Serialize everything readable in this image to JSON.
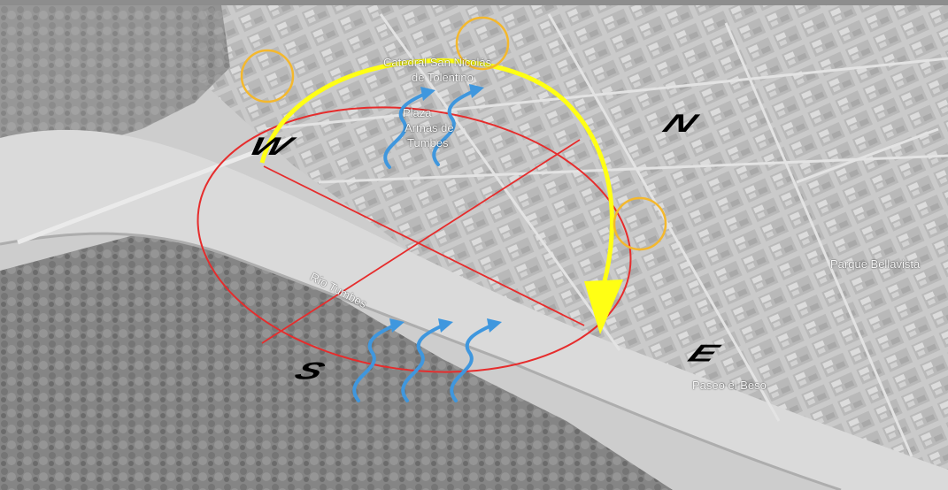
{
  "place_labels": {
    "cathedral_line1": "Catedral San Nicolás",
    "cathedral_line2": "de Tolentino",
    "plaza_line1": "Plaza",
    "plaza_line2": "Armas de",
    "plaza_line3": "Tumbes",
    "river": "Río Tumbes",
    "park": "Parque Bellavista",
    "promenade": "Paseo el Beso"
  },
  "cardinal_points": {
    "north": "N",
    "south": "S",
    "east": "E",
    "west": "W"
  },
  "colors": {
    "site_ellipse": "#e41b1b",
    "sun_path_arrow": "#ffff00",
    "sun_markers": "#f3b21c",
    "wind_arrows": "#2f8fdc",
    "map_base": "#bdbdbd"
  },
  "icons": {
    "sun_path": "curved-arrow-icon",
    "sun_position": "circle-icon",
    "wind": "wavy-arrow-icon"
  }
}
